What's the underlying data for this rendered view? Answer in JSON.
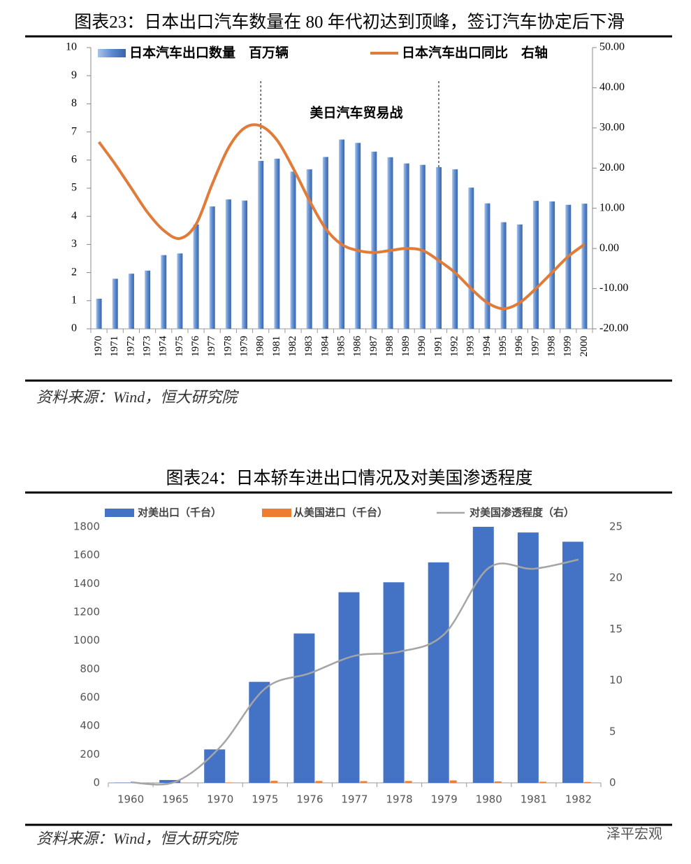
{
  "chart_data": [
    {
      "type": "bar",
      "title": "图表23：日本出口汽车数量在 80 年代初达到顶峰，签订汽车协定后下滑",
      "annotation": "美日汽车贸易战",
      "source": "资料来源：Wind，恒大研究院",
      "categories": [
        "1970",
        "1971",
        "1972",
        "1973",
        "1974",
        "1975",
        "1976",
        "1977",
        "1978",
        "1979",
        "1980",
        "1981",
        "1982",
        "1983",
        "1984",
        "1985",
        "1986",
        "1987",
        "1988",
        "1989",
        "1990",
        "1991",
        "1992",
        "1993",
        "1994",
        "1995",
        "1996",
        "1997",
        "1998",
        "1999",
        "2000"
      ],
      "series": [
        {
          "name": "日本汽车出口数量　百万辆",
          "type": "bar",
          "color": "#5b8bd0",
          "values": [
            1.07,
            1.78,
            1.96,
            2.07,
            2.62,
            2.68,
            3.71,
            4.35,
            4.6,
            4.56,
            5.97,
            6.05,
            5.59,
            5.67,
            6.11,
            6.73,
            6.61,
            6.3,
            6.1,
            5.88,
            5.83,
            5.75,
            5.67,
            5.02,
            4.46,
            3.79,
            3.71,
            4.55,
            4.53,
            4.41,
            4.45
          ]
        },
        {
          "name": "日本汽车出口同比　右轴",
          "type": "line",
          "axis": "y2",
          "color": "#e07b39",
          "values": [
            26.5,
            21,
            15,
            9,
            4.5,
            2.5,
            6,
            16,
            25,
            30,
            30.5,
            27,
            20,
            12,
            5,
            1,
            -0.5,
            -1,
            -0.5,
            0,
            -0.5,
            -3,
            -6,
            -10,
            -13.5,
            -15,
            -13.5,
            -10,
            -6,
            -2,
            1
          ]
        }
      ],
      "ylim": [
        0,
        10
      ],
      "yticks": [
        0,
        1,
        2,
        3,
        4,
        5,
        6,
        7,
        8,
        9,
        10
      ],
      "y2lim": [
        -20,
        50
      ],
      "y2ticks": [
        {
          "value": -20,
          "label": "-20.00"
        },
        {
          "value": -10,
          "label": "-10.00"
        },
        {
          "value": 0,
          "label": "0.00"
        },
        {
          "value": 10,
          "label": "10.00"
        },
        {
          "value": 20,
          "label": "20.00"
        },
        {
          "value": 30,
          "label": "30.00"
        },
        {
          "value": 40,
          "label": "40.00"
        },
        {
          "value": 50,
          "label": "50.00"
        }
      ],
      "grid": false
    },
    {
      "type": "bar",
      "title": "图表24：日本轿车进出口情况及对美国渗透程度",
      "source": "资料来源：Wind，恒大研究院",
      "categories": [
        "1960",
        "1965",
        "1970",
        "1975",
        "1976",
        "1977",
        "1978",
        "1979",
        "1980",
        "1981",
        "1982"
      ],
      "series": [
        {
          "name": "对美出口（千台）",
          "type": "bar",
          "color": "#4472c4",
          "values": [
            2,
            20,
            235,
            710,
            1050,
            1340,
            1410,
            1550,
            1800,
            1760,
            1695
          ]
        },
        {
          "name": "从美国进口（千台）",
          "type": "bar",
          "color": "#ed7d31",
          "values": [
            0,
            1,
            3,
            14,
            13,
            12,
            13,
            17,
            10,
            8,
            6
          ]
        },
        {
          "name": "对美国渗透程度（右）",
          "type": "line",
          "axis": "y2",
          "color": "#a5a5a5",
          "values": [
            0.05,
            0.1,
            3.5,
            9.2,
            10.7,
            12.4,
            12.8,
            14.5,
            21,
            20.9,
            21.8
          ]
        }
      ],
      "ylim": [
        0,
        1800
      ],
      "yticks": [
        0,
        200,
        400,
        600,
        800,
        1000,
        1200,
        1400,
        1600,
        1800
      ],
      "y2lim": [
        0,
        25
      ],
      "y2ticks": [
        0,
        5,
        10,
        15,
        20,
        25
      ],
      "grid": false
    }
  ],
  "watermark": "泽平宏观"
}
